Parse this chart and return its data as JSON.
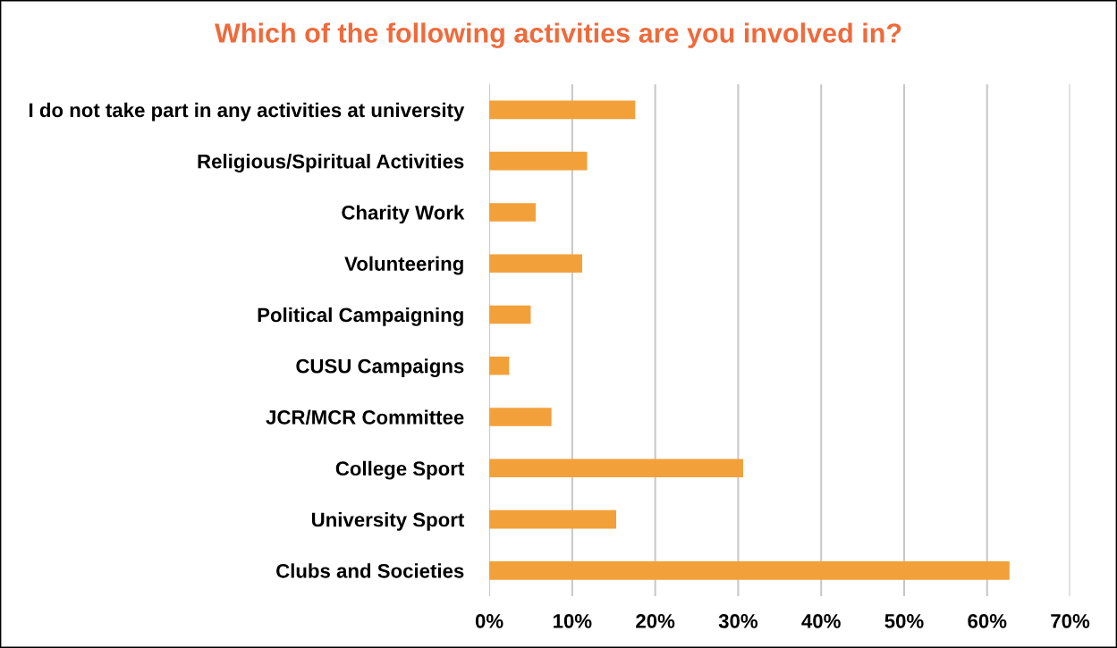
{
  "chart_data": {
    "type": "bar",
    "orientation": "horizontal",
    "title": "Which of the following activities are you involved in?",
    "categories": [
      "I do not take part in any activities at university",
      "Religious/Spiritual Activities",
      "Charity Work",
      "Volunteering",
      "Political Campaigning",
      "CUSU Campaigns",
      "JCR/MCR Committee",
      "College Sport",
      "University Sport",
      "Clubs and Societies"
    ],
    "values": [
      17.6,
      11.8,
      5.6,
      11.2,
      5.0,
      2.4,
      7.5,
      30.6,
      15.3,
      62.7
    ],
    "color": "#f2a13a",
    "xlim": [
      0,
      70
    ],
    "xticks": [
      {
        "value": 0,
        "label": "0%"
      },
      {
        "value": 10,
        "label": "10%"
      },
      {
        "value": 20,
        "label": "20%"
      },
      {
        "value": 30,
        "label": "30%"
      },
      {
        "value": 40,
        "label": "40%"
      },
      {
        "value": 50,
        "label": "50%"
      },
      {
        "value": 60,
        "label": "60%"
      },
      {
        "value": 70,
        "label": "70%"
      }
    ],
    "grid": "x"
  }
}
